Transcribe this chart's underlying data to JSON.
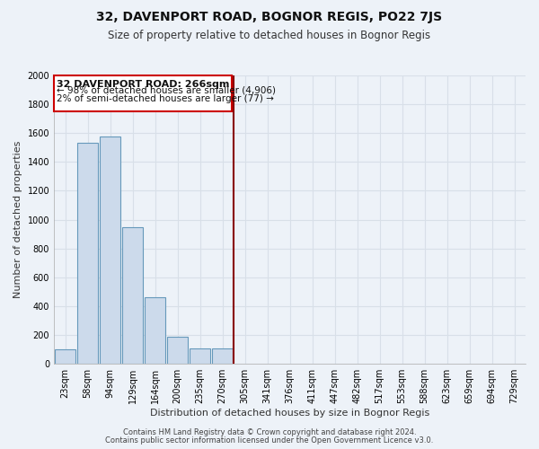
{
  "title": "32, DAVENPORT ROAD, BOGNOR REGIS, PO22 7JS",
  "subtitle": "Size of property relative to detached houses in Bognor Regis",
  "xlabel": "Distribution of detached houses by size in Bognor Regis",
  "ylabel": "Number of detached properties",
  "bar_color": "#ccdaeb",
  "bar_edge_color": "#6699bb",
  "background_color": "#edf2f8",
  "grid_color": "#d8dfe8",
  "annotation_box_color": "#ffffff",
  "annotation_border_color": "#cc0000",
  "vline_color": "#880000",
  "categories": [
    "23sqm",
    "58sqm",
    "94sqm",
    "129sqm",
    "164sqm",
    "200sqm",
    "235sqm",
    "270sqm",
    "305sqm",
    "341sqm",
    "376sqm",
    "411sqm",
    "447sqm",
    "482sqm",
    "517sqm",
    "553sqm",
    "588sqm",
    "623sqm",
    "659sqm",
    "694sqm",
    "729sqm"
  ],
  "values": [
    100,
    1530,
    1575,
    950,
    460,
    185,
    105,
    105,
    0,
    0,
    0,
    0,
    0,
    0,
    0,
    0,
    0,
    0,
    0,
    0,
    0
  ],
  "ylim": [
    0,
    2000
  ],
  "yticks": [
    0,
    200,
    400,
    600,
    800,
    1000,
    1200,
    1400,
    1600,
    1800,
    2000
  ],
  "vline_position": 7.5,
  "annotation_title": "32 DAVENPORT ROAD: 266sqm",
  "annotation_line1": "← 98% of detached houses are smaller (4,906)",
  "annotation_line2": "2% of semi-detached houses are larger (77) →",
  "footnote1": "Contains HM Land Registry data © Crown copyright and database right 2024.",
  "footnote2": "Contains public sector information licensed under the Open Government Licence v3.0.",
  "title_fontsize": 10,
  "subtitle_fontsize": 8.5,
  "annotation_title_fontsize": 8,
  "annotation_text_fontsize": 7.5,
  "ylabel_fontsize": 8,
  "xlabel_fontsize": 8,
  "footnote_fontsize": 6,
  "tick_fontsize": 7
}
